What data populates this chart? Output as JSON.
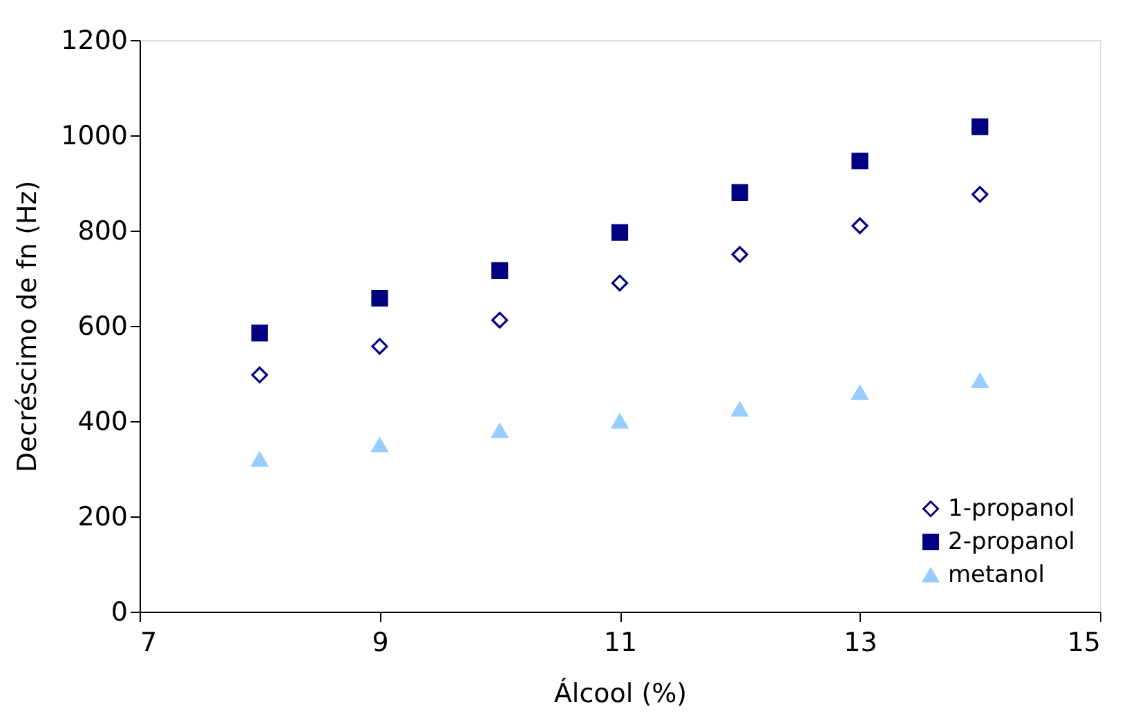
{
  "chart_data": {
    "type": "scatter",
    "xlabel": "Álcool (%)",
    "ylabel": "Decréscimo de fn (Hz)",
    "x": [
      8,
      9,
      10,
      11,
      12,
      13,
      14
    ],
    "series": [
      {
        "name": "1-propanol",
        "color": "#000080",
        "marker": "diamond",
        "values": [
          497,
          557,
          612,
          690,
          750,
          810,
          876
        ]
      },
      {
        "name": "2-propanol",
        "color": "#000080",
        "marker": "square",
        "values": [
          585,
          658,
          716,
          796,
          880,
          946,
          1018
        ]
      },
      {
        "name": "metanol",
        "color": "#99ccff",
        "marker": "triangle",
        "values": [
          320,
          350,
          380,
          400,
          425,
          460,
          485
        ]
      }
    ],
    "xlim": [
      7,
      15
    ],
    "xticks": [
      7,
      9,
      11,
      13,
      15
    ],
    "ylim": [
      0,
      1200
    ],
    "yticks": [
      0,
      200,
      400,
      600,
      800,
      1000,
      1200
    ],
    "grid": false,
    "legend": "bottom right"
  }
}
